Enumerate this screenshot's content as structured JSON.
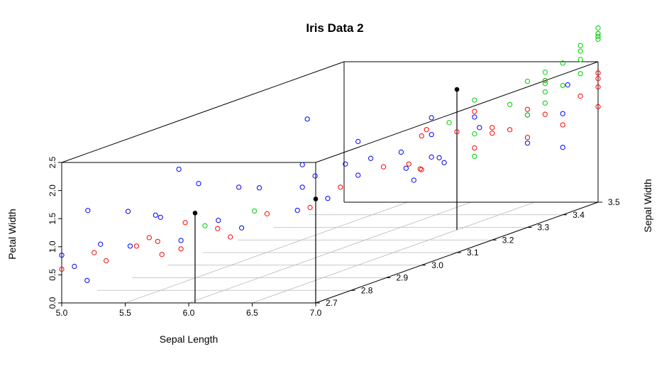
{
  "chart_data": {
    "type": "scatter3d",
    "title": "Iris Data 2",
    "xlabel": "Sepal Length",
    "ylabel": "Petal Width",
    "zlabel": "Sepal Width",
    "xlim": [
      5.0,
      7.0
    ],
    "ylim": [
      0.0,
      2.5
    ],
    "zlim": [
      2.7,
      3.5
    ],
    "x_ticks": [
      "5.0",
      "5.5",
      "6.0",
      "6.5",
      "7.0"
    ],
    "y_ticks": [
      "0.0",
      "0.5",
      "1.0",
      "1.5",
      "2.0",
      "2.5"
    ],
    "z_ticks": [
      "2.7",
      "2.8",
      "2.9",
      "3.0",
      "3.1",
      "3.2",
      "3.3",
      "3.4",
      "3.5"
    ],
    "grid": true,
    "colors": {
      "setosa": "#0000ff",
      "versicolor": "#ff0000",
      "virginica": "#00cc00",
      "highlight": "#000000"
    },
    "series": [
      {
        "color": "#0000ff",
        "points": [
          [
            5.0,
            0.85,
            2.7
          ],
          [
            5.1,
            0.65,
            2.7
          ],
          [
            5.15,
            1.6,
            2.72
          ],
          [
            5.2,
            0.4,
            2.7
          ],
          [
            5.25,
            1.0,
            2.72
          ],
          [
            5.3,
            1.45,
            2.78
          ],
          [
            5.4,
            0.9,
            2.75
          ],
          [
            5.5,
            1.3,
            2.8
          ],
          [
            5.6,
            1.45,
            2.75
          ],
          [
            5.7,
            2.2,
            2.78
          ],
          [
            5.8,
            1.0,
            2.75
          ],
          [
            5.8,
            1.9,
            2.8
          ],
          [
            5.9,
            1.2,
            2.82
          ],
          [
            6.0,
            1.6,
            2.9
          ],
          [
            6.1,
            2.6,
            3.0
          ],
          [
            6.2,
            1.9,
            2.95
          ],
          [
            6.3,
            1.7,
            2.95
          ],
          [
            6.4,
            1.8,
            3.0
          ],
          [
            6.5,
            1.6,
            3.0
          ],
          [
            6.6,
            1.9,
            3.0
          ],
          [
            6.7,
            1.9,
            3.05
          ],
          [
            6.8,
            1.7,
            3.1
          ],
          [
            6.8,
            2.4,
            3.1
          ],
          [
            6.9,
            1.6,
            3.1
          ],
          [
            7.0,
            1.5,
            3.3
          ],
          [
            5.7,
            1.5,
            2.95
          ],
          [
            6.0,
            1.0,
            2.85
          ],
          [
            6.3,
            1.2,
            2.9
          ],
          [
            6.5,
            2.2,
            3.0
          ],
          [
            6.6,
            1.5,
            3.1
          ],
          [
            6.8,
            2.1,
            3.1
          ],
          [
            7.0,
            2.3,
            3.15
          ],
          [
            6.2,
            1.5,
            2.95
          ],
          [
            6.4,
            1.3,
            2.95
          ],
          [
            6.9,
            2.0,
            3.2
          ],
          [
            6.8,
            1.4,
            3.05
          ],
          [
            7.0,
            2.0,
            3.3
          ],
          [
            6.9,
            2.2,
            3.45
          ],
          [
            7.0,
            1.8,
            3.4
          ],
          [
            7.0,
            1.2,
            3.4
          ],
          [
            7.0,
            1.8,
            3.05
          ]
        ]
      },
      {
        "color": "#ff0000",
        "points": [
          [
            5.0,
            0.6,
            2.7
          ],
          [
            5.2,
            0.85,
            2.72
          ],
          [
            5.35,
            0.75,
            2.7
          ],
          [
            5.45,
            0.9,
            2.75
          ],
          [
            5.55,
            1.05,
            2.75
          ],
          [
            5.65,
            0.75,
            2.75
          ],
          [
            5.7,
            1.05,
            2.72
          ],
          [
            5.75,
            1.25,
            2.78
          ],
          [
            5.8,
            0.85,
            2.75
          ],
          [
            5.95,
            1.1,
            2.8
          ],
          [
            6.05,
            0.95,
            2.8
          ],
          [
            6.2,
            1.25,
            2.85
          ],
          [
            6.4,
            1.25,
            2.9
          ],
          [
            6.5,
            1.5,
            2.95
          ],
          [
            6.7,
            1.75,
            3.0
          ],
          [
            6.85,
            1.6,
            3.05
          ],
          [
            7.0,
            1.75,
            3.15
          ],
          [
            7.0,
            2.0,
            3.2
          ],
          [
            7.0,
            2.1,
            3.3
          ],
          [
            7.0,
            1.6,
            3.3
          ],
          [
            7.0,
            1.9,
            3.35
          ],
          [
            7.0,
            2.5,
            3.35
          ],
          [
            7.0,
            2.0,
            3.45
          ],
          [
            7.0,
            2.2,
            3.5
          ],
          [
            7.0,
            1.7,
            3.5
          ],
          [
            7.0,
            1.6,
            3.4
          ],
          [
            7.0,
            2.15,
            3.1
          ],
          [
            7.0,
            1.9,
            3.2
          ],
          [
            7.0,
            2.4,
            3.15
          ],
          [
            7.0,
            2.3,
            3.0
          ],
          [
            7.0,
            1.7,
            3.0
          ],
          [
            6.9,
            1.8,
            3.0
          ],
          [
            6.9,
            2.3,
            3.05
          ],
          [
            7.0,
            1.85,
            3.25
          ],
          [
            7.0,
            2.05,
            3.5
          ],
          [
            7.0,
            2.3,
            3.5
          ]
        ]
      },
      {
        "color": "#00cc00",
        "points": [
          [
            5.85,
            1.15,
            2.8
          ],
          [
            6.1,
            1.3,
            2.85
          ],
          [
            6.8,
            2.2,
            3.15
          ],
          [
            7.0,
            2.0,
            3.15
          ],
          [
            7.0,
            1.6,
            3.15
          ],
          [
            7.0,
            2.6,
            3.15
          ],
          [
            7.0,
            2.3,
            3.35
          ],
          [
            7.0,
            2.45,
            3.35
          ],
          [
            7.0,
            2.65,
            3.35
          ],
          [
            7.0,
            3.0,
            3.5
          ],
          [
            7.0,
            2.9,
            3.45
          ],
          [
            7.0,
            2.8,
            3.45
          ],
          [
            7.0,
            2.6,
            3.3
          ],
          [
            7.0,
            2.3,
            3.25
          ],
          [
            7.0,
            2.0,
            3.3
          ],
          [
            7.0,
            2.3,
            3.4
          ],
          [
            7.0,
            2.1,
            3.35
          ],
          [
            7.0,
            2.4,
            3.45
          ],
          [
            7.0,
            2.65,
            3.45
          ],
          [
            7.0,
            2.95,
            3.5
          ],
          [
            7.0,
            3.0,
            3.5
          ],
          [
            7.0,
            2.9,
            3.5
          ],
          [
            7.0,
            3.1,
            3.5
          ],
          [
            7.0,
            2.5,
            3.35
          ],
          [
            7.0,
            2.7,
            3.4
          ]
        ]
      },
      {
        "color": "#000000",
        "points": [
          [
            6.05,
            1.6,
            2.7
          ],
          [
            7.0,
            1.85,
            2.7
          ],
          [
            6.5,
            2.5,
            3.28
          ]
        ]
      }
    ]
  }
}
